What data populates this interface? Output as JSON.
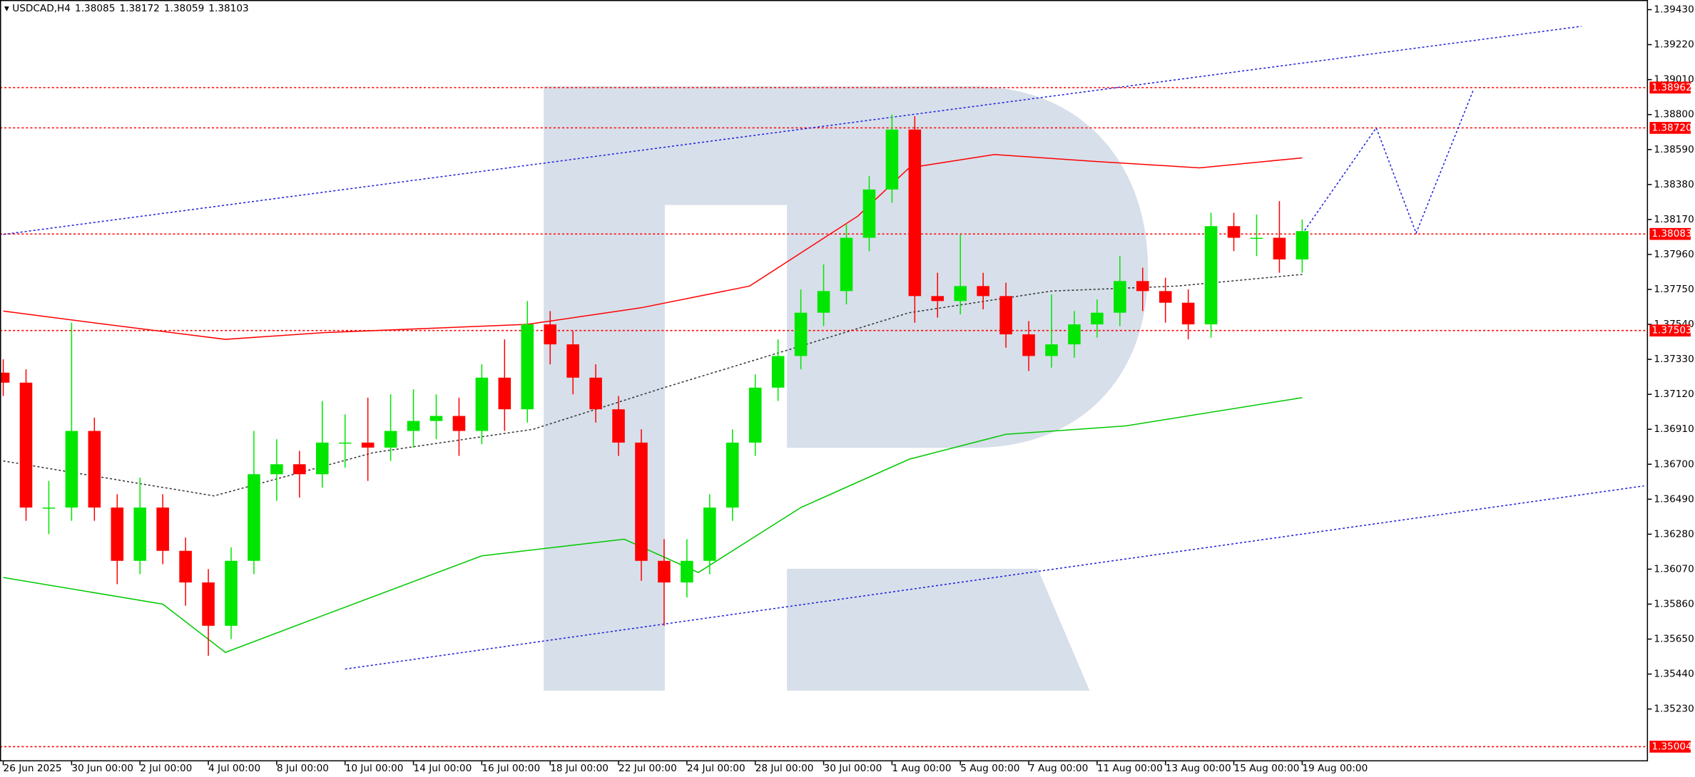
{
  "chart_data": {
    "type": "candlestick",
    "symbol": "USDCAD,H4",
    "header_values": [
      1.38085,
      1.38172,
      1.38059,
      1.38103
    ],
    "up_color": "#00e600",
    "down_color": "#ff0000",
    "x": [
      0,
      4,
      8,
      12,
      16,
      20,
      24,
      28,
      32,
      36,
      40,
      44,
      48,
      52,
      56,
      60,
      64,
      68,
      72,
      76,
      80,
      84,
      88,
      92,
      96,
      100,
      104,
      108,
      112,
      116,
      120,
      124,
      128,
      132,
      136,
      140,
      144,
      148,
      152,
      156,
      160,
      164,
      168,
      172,
      176,
      180,
      184,
      188,
      192,
      196,
      200,
      204,
      208,
      212,
      216,
      220,
      224,
      228
    ],
    "open": [
      1.3725,
      1.3719,
      1.3644,
      1.3644,
      1.369,
      1.3644,
      1.3612,
      1.3644,
      1.3618,
      1.3599,
      1.3573,
      1.3612,
      1.3664,
      1.367,
      1.3664,
      1.3683,
      1.3683,
      1.368,
      1.369,
      1.3696,
      1.3699,
      1.369,
      1.3722,
      1.3703,
      1.3754,
      1.3742,
      1.3722,
      1.3703,
      1.3683,
      1.3612,
      1.3599,
      1.3612,
      1.3644,
      1.3683,
      1.3716,
      1.3735,
      1.3761,
      1.3774,
      1.3806,
      1.3835,
      1.3871,
      1.3771,
      1.3768,
      1.3777,
      1.3771,
      1.3748,
      1.3735,
      1.3742,
      1.3754,
      1.3761,
      1.378,
      1.3774,
      1.3767,
      1.3754,
      1.3813,
      1.3806,
      1.3806,
      1.3793
    ],
    "high": [
      1.3733,
      1.3727,
      1.366,
      1.3755,
      1.3698,
      1.3652,
      1.3662,
      1.3652,
      1.3626,
      1.3607,
      1.362,
      1.369,
      1.3685,
      1.3678,
      1.3708,
      1.37,
      1.371,
      1.3712,
      1.3715,
      1.3712,
      1.371,
      1.373,
      1.3745,
      1.3768,
      1.3762,
      1.375,
      1.373,
      1.3711,
      1.3691,
      1.3625,
      1.3625,
      1.3652,
      1.3691,
      1.3724,
      1.3745,
      1.3775,
      1.379,
      1.3814,
      1.3843,
      1.388,
      1.3879,
      1.3785,
      1.3808,
      1.3785,
      1.3779,
      1.3756,
      1.3772,
      1.3762,
      1.3769,
      1.3795,
      1.3788,
      1.3782,
      1.3775,
      1.3821,
      1.3821,
      1.382,
      1.3828,
      1.3817
    ],
    "low": [
      1.3711,
      1.3636,
      1.3628,
      1.3636,
      1.3636,
      1.3598,
      1.3604,
      1.361,
      1.3585,
      1.3555,
      1.3565,
      1.3604,
      1.3648,
      1.365,
      1.3656,
      1.3668,
      1.366,
      1.3672,
      1.368,
      1.3685,
      1.3675,
      1.3682,
      1.369,
      1.3695,
      1.373,
      1.3712,
      1.3695,
      1.3675,
      1.36,
      1.3573,
      1.359,
      1.3604,
      1.3636,
      1.3675,
      1.3708,
      1.3727,
      1.3753,
      1.3766,
      1.3798,
      1.3827,
      1.3755,
      1.3758,
      1.376,
      1.3763,
      1.374,
      1.3726,
      1.3728,
      1.3734,
      1.3746,
      1.3753,
      1.3762,
      1.3755,
      1.3745,
      1.3746,
      1.3798,
      1.3795,
      1.3785,
      1.3785
    ],
    "close": [
      1.3719,
      1.3644,
      1.3644,
      1.369,
      1.3644,
      1.3612,
      1.3644,
      1.3618,
      1.3599,
      1.3573,
      1.3612,
      1.3664,
      1.367,
      1.3664,
      1.3683,
      1.3683,
      1.368,
      1.369,
      1.3696,
      1.3699,
      1.369,
      1.3722,
      1.3703,
      1.3754,
      1.3742,
      1.3722,
      1.3703,
      1.3683,
      1.3612,
      1.3599,
      1.3612,
      1.3644,
      1.3683,
      1.3716,
      1.3735,
      1.3761,
      1.3774,
      1.3806,
      1.3835,
      1.3871,
      1.3771,
      1.3768,
      1.3777,
      1.3771,
      1.3748,
      1.3735,
      1.3742,
      1.3754,
      1.3761,
      1.378,
      1.3774,
      1.3767,
      1.3754,
      1.3813,
      1.3806,
      1.3806,
      1.3793,
      1.381
    ],
    "xlim": [
      -0.57,
      288.6
    ],
    "xticks": [
      {
        "value": 0,
        "label": "26 Jun 2025"
      },
      {
        "value": 12,
        "label": "30 Jun 00:00"
      },
      {
        "value": 24,
        "label": "2 Jul 00:00"
      },
      {
        "value": 36,
        "label": "4 Jul 00:00"
      },
      {
        "value": 48,
        "label": "8 Jul 00:00"
      },
      {
        "value": 60,
        "label": "10 Jul 00:00"
      },
      {
        "value": 72,
        "label": "14 Jul 00:00"
      },
      {
        "value": 84,
        "label": "16 Jul 00:00"
      },
      {
        "value": 96,
        "label": "18 Jul 00:00"
      },
      {
        "value": 108,
        "label": "22 Jul 00:00"
      },
      {
        "value": 120,
        "label": "24 Jul 00:00"
      },
      {
        "value": 132,
        "label": "28 Jul 00:00"
      },
      {
        "value": 144,
        "label": "30 Jul 00:00"
      },
      {
        "value": 156,
        "label": "1 Aug 00:00"
      },
      {
        "value": 168,
        "label": "5 Aug 00:00"
      },
      {
        "value": 180,
        "label": "7 Aug 00:00"
      },
      {
        "value": 192,
        "label": "11 Aug 00:00"
      },
      {
        "value": 204,
        "label": "13 Aug 00:00"
      },
      {
        "value": 216,
        "label": "15 Aug 00:00"
      },
      {
        "value": 228,
        "label": "19 Aug 00:00"
      }
    ],
    "ylim": [
      1.34919,
      1.39488
    ],
    "yticks": [
      {
        "value": 1.3943,
        "label": "1.39430"
      },
      {
        "value": 1.3922,
        "label": "1.39220"
      },
      {
        "value": 1.3901,
        "label": "1.39010"
      },
      {
        "value": 1.388,
        "label": "1.38800"
      },
      {
        "value": 1.3859,
        "label": "1.38590"
      },
      {
        "value": 1.3838,
        "label": "1.38380"
      },
      {
        "value": 1.3817,
        "label": "1.38170"
      },
      {
        "value": 1.3796,
        "label": "1.37960"
      },
      {
        "value": 1.3775,
        "label": "1.37750"
      },
      {
        "value": 1.3754,
        "label": "1.37540"
      },
      {
        "value": 1.3733,
        "label": "1.37330"
      },
      {
        "value": 1.3712,
        "label": "1.37120"
      },
      {
        "value": 1.3691,
        "label": "1.36910"
      },
      {
        "value": 1.367,
        "label": "1.36700"
      },
      {
        "value": 1.3649,
        "label": "1.36490"
      },
      {
        "value": 1.3628,
        "label": "1.36280"
      },
      {
        "value": 1.3607,
        "label": "1.36070"
      },
      {
        "value": 1.3586,
        "label": "1.35860"
      },
      {
        "value": 1.3565,
        "label": "1.35650"
      },
      {
        "value": 1.3544,
        "label": "1.35440"
      },
      {
        "value": 1.3523,
        "label": "1.35230"
      }
    ],
    "level_color": "#ff0000",
    "levels": [
      1.38962,
      {
        "value": 1.3872,
        "label": "1.38720"
      },
      1.38083,
      1.37503,
      1.35004
    ],
    "moving_averages": [
      {
        "color": "#ff0000",
        "style": "solid",
        "x": [
          0,
          18,
          39,
          56,
          92,
          112,
          131,
          150,
          159,
          174,
          191,
          210,
          228
        ],
        "values": [
          1.3762,
          1.3754,
          1.3745,
          1.3749,
          1.3754,
          1.3764,
          1.3777,
          1.3819,
          1.3848,
          1.3856,
          1.3852,
          1.3848,
          1.3854
        ]
      },
      {
        "color": "#00c800",
        "style": "solid",
        "x": [
          0,
          28,
          39,
          56,
          84,
          109,
          122,
          140,
          159,
          176,
          197,
          228
        ],
        "values": [
          1.3602,
          1.3586,
          1.3557,
          1.3579,
          1.3615,
          1.3625,
          1.3605,
          1.3644,
          1.3673,
          1.3688,
          1.3693,
          1.371
        ]
      },
      {
        "color": "#333333",
        "style": "dotted",
        "x": [
          0,
          37,
          65,
          93,
          116,
          140,
          159,
          184,
          206,
          228
        ],
        "values": [
          1.3672,
          1.3651,
          1.3677,
          1.3691,
          1.3716,
          1.3741,
          1.3761,
          1.3774,
          1.3777,
          1.3784
        ]
      }
    ],
    "trend_lines": [
      {
        "color": "#2020e0",
        "x": [
          0,
          277
        ],
        "values": [
          1.3808,
          1.3933
        ]
      },
      {
        "color": "#2020e0",
        "x": [
          60,
          288
        ],
        "values": [
          1.3547,
          1.3657
        ]
      },
      {
        "color": "#2020e0",
        "x": [
          228,
          241,
          248,
          258
        ],
        "values": [
          1.38083,
          1.3872,
          1.38088,
          1.38944
        ]
      }
    ]
  }
}
